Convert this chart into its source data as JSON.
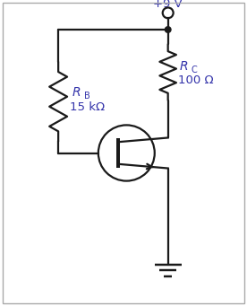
{
  "background_color": "#ffffff",
  "border_color": "#aaaaaa",
  "line_color": "#1a1a1a",
  "text_color_blue": "#3333aa",
  "figsize": [
    2.76,
    3.41
  ],
  "dpi": 100,
  "xlim": [
    0,
    8
  ],
  "ylim": [
    0,
    10
  ]
}
